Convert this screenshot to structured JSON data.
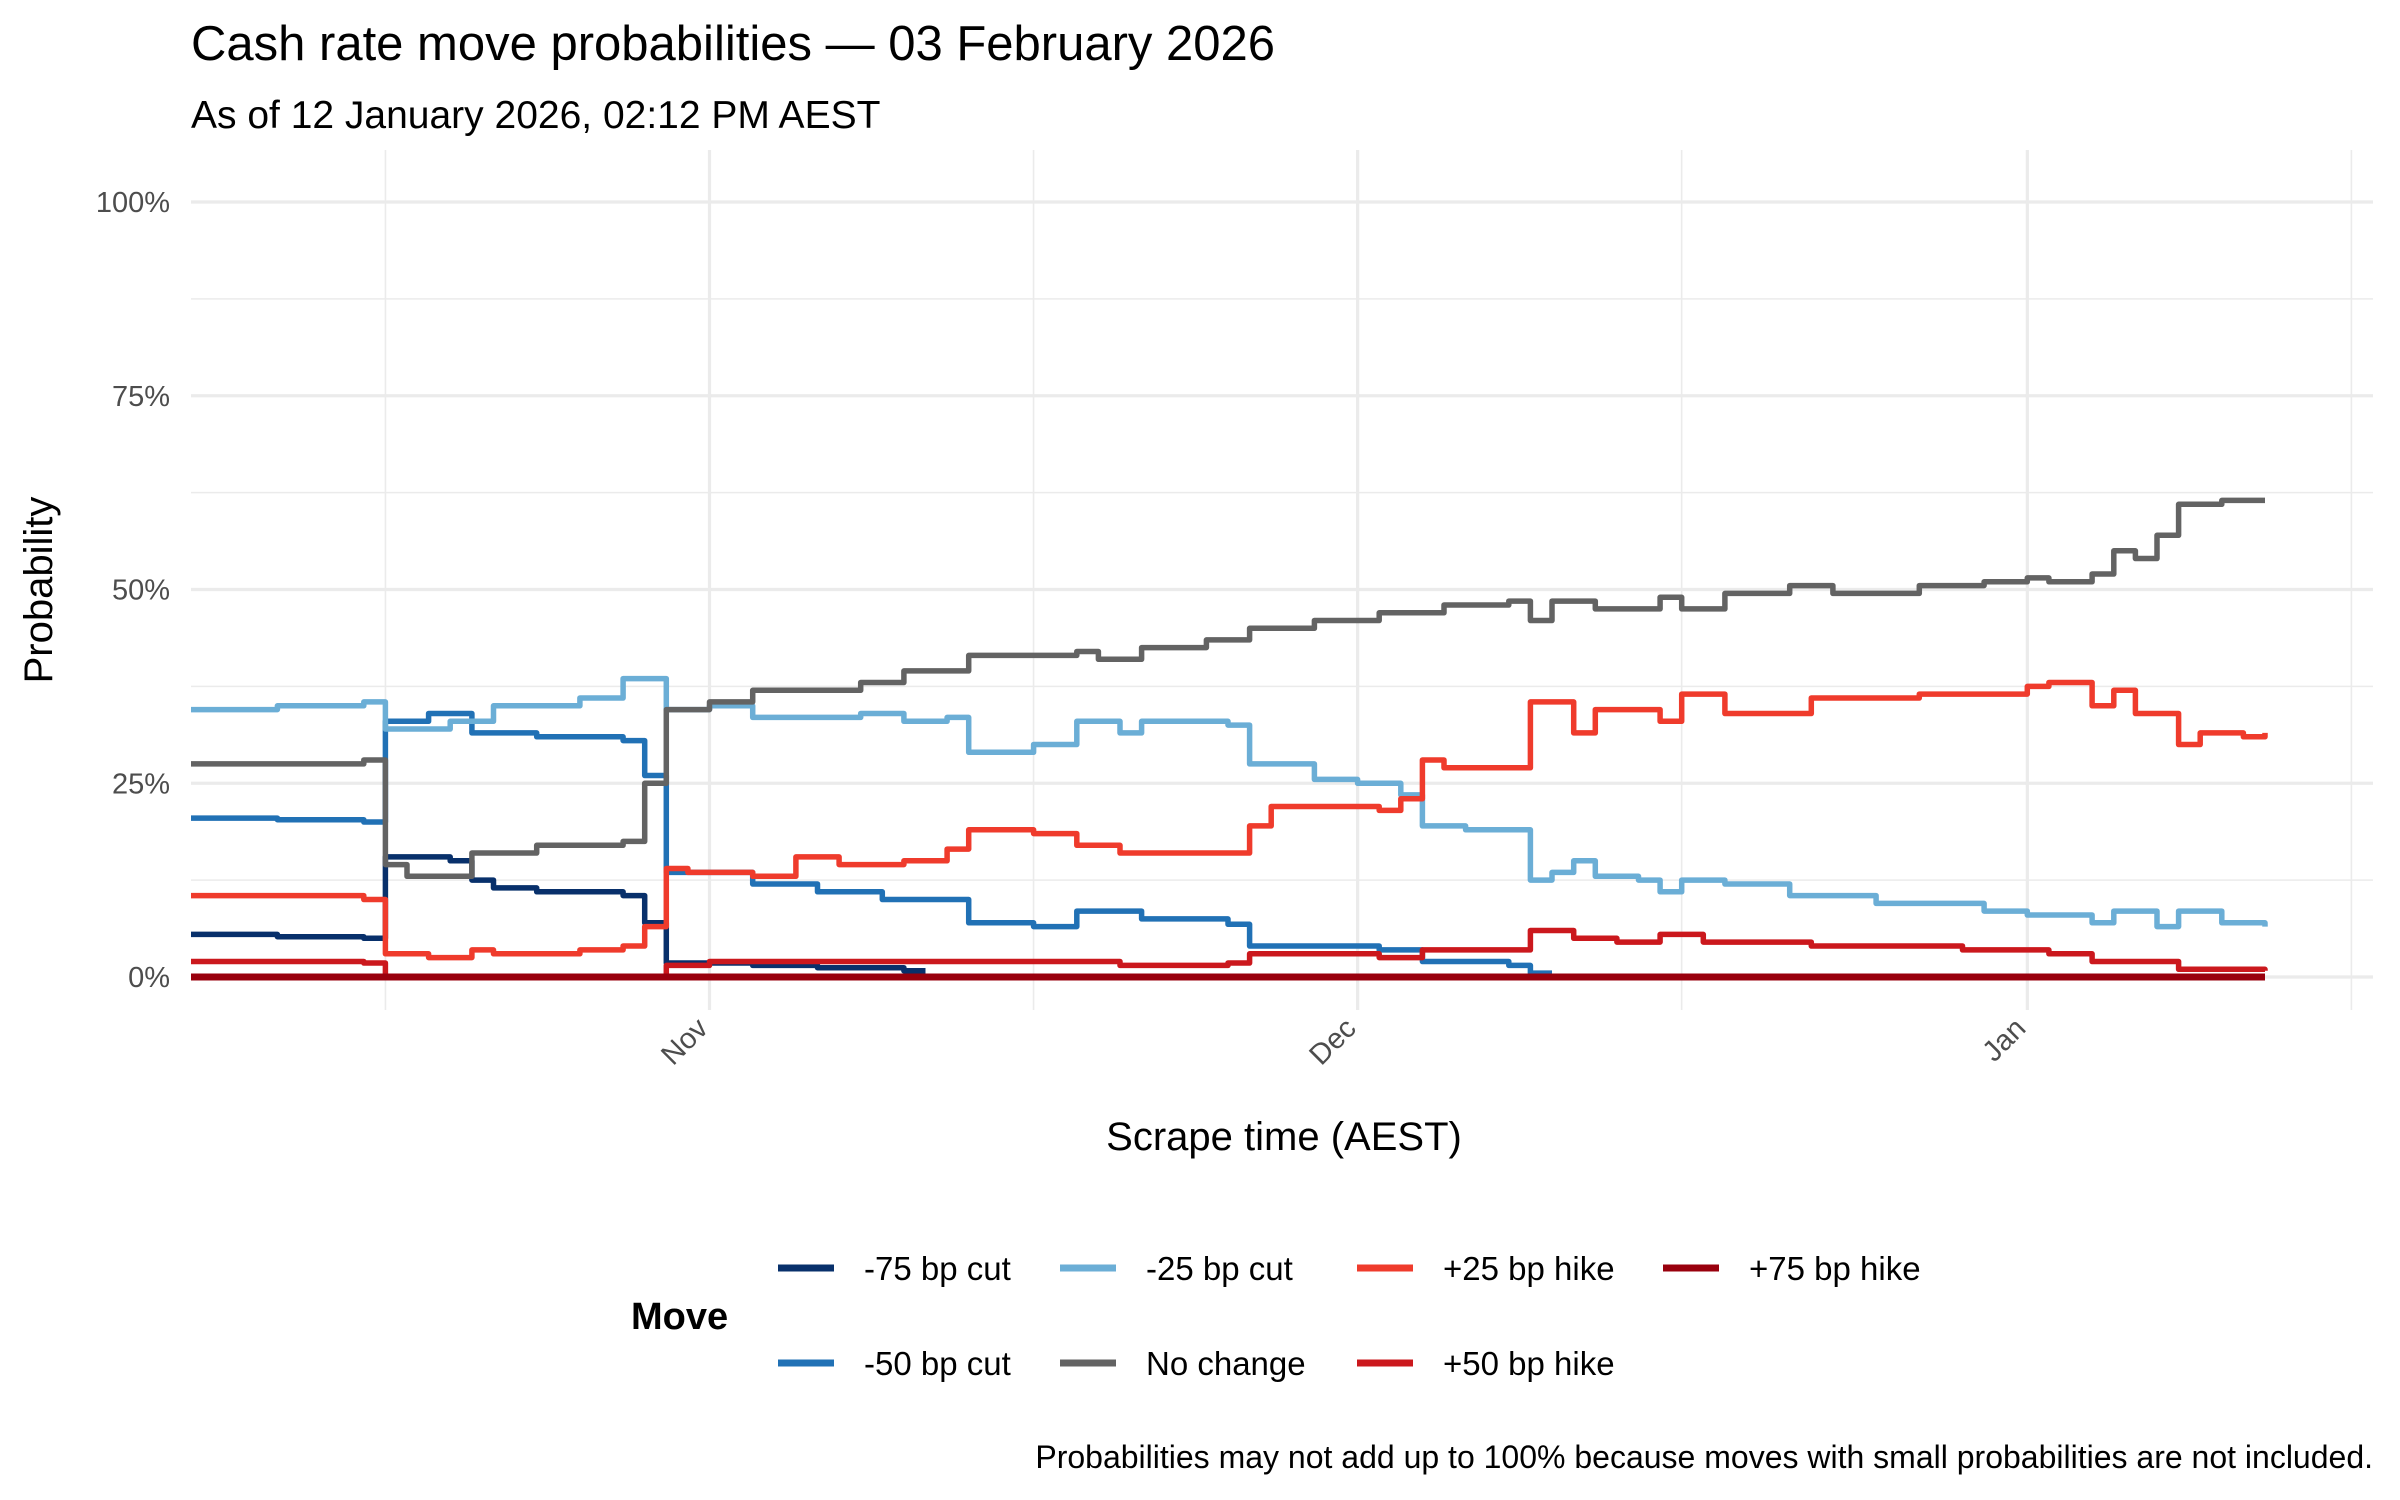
{
  "chart_data": {
    "type": "line",
    "title": "Cash rate move probabilities — 03 February 2026",
    "subtitle": "As of 12 January 2026, 02:12 PM AEST",
    "xlabel": "Scrape time (AEST)",
    "ylabel": "Probability",
    "caption": "Probabilities may not add up to 100% because moves with small probabilities are not included.",
    "xlim": [
      "2025-10-08",
      "2026-01-17"
    ],
    "ylim": [
      0,
      100
    ],
    "x_ticks": [
      {
        "date": "2025-11-01",
        "label": "Nov"
      },
      {
        "date": "2025-12-01",
        "label": "Dec"
      },
      {
        "date": "2026-01-01",
        "label": "Jan"
      }
    ],
    "x_minor_ticks": [
      "2025-10-17",
      "2025-11-16",
      "2025-12-16",
      "2026-01-16"
    ],
    "y_ticks": [
      {
        "value": 0,
        "label": "0%"
      },
      {
        "value": 25,
        "label": "25%"
      },
      {
        "value": 50,
        "label": "50%"
      },
      {
        "value": 75,
        "label": "75%"
      },
      {
        "value": 100,
        "label": "100%"
      }
    ],
    "grid": true,
    "legend": {
      "title": "Move",
      "position": "bottom"
    },
    "series": [
      {
        "name": "-75 bp cut",
        "color": "#08306b",
        "points": [
          [
            "2025-10-08",
            5.5
          ],
          [
            "2025-10-12",
            5.2
          ],
          [
            "2025-10-16",
            5
          ],
          [
            "2025-10-17",
            15.5
          ],
          [
            "2025-10-20",
            15
          ],
          [
            "2025-10-21",
            12.5
          ],
          [
            "2025-10-22",
            11.5
          ],
          [
            "2025-10-24",
            11
          ],
          [
            "2025-10-28",
            10.5
          ],
          [
            "2025-10-29",
            7
          ],
          [
            "2025-10-30",
            1.8
          ],
          [
            "2025-11-03",
            1.5
          ],
          [
            "2025-11-06",
            1.2
          ],
          [
            "2025-11-10",
            0.8
          ],
          [
            "2025-11-11",
            0.8
          ]
        ]
      },
      {
        "name": "-50 bp cut",
        "color": "#2171b5",
        "points": [
          [
            "2025-10-08",
            20.5
          ],
          [
            "2025-10-12",
            20.3
          ],
          [
            "2025-10-16",
            20
          ],
          [
            "2025-10-17",
            33
          ],
          [
            "2025-10-19",
            34
          ],
          [
            "2025-10-21",
            31.5
          ],
          [
            "2025-10-24",
            31
          ],
          [
            "2025-10-28",
            30.5
          ],
          [
            "2025-10-29",
            26
          ],
          [
            "2025-10-30",
            13.5
          ],
          [
            "2025-11-03",
            12
          ],
          [
            "2025-11-06",
            11
          ],
          [
            "2025-11-09",
            10
          ],
          [
            "2025-11-13",
            7
          ],
          [
            "2025-11-16",
            6.5
          ],
          [
            "2025-11-18",
            8.5
          ],
          [
            "2025-11-21",
            7.5
          ],
          [
            "2025-11-25",
            6.8
          ],
          [
            "2025-11-26",
            4
          ],
          [
            "2025-12-02",
            3.5
          ],
          [
            "2025-12-04",
            2
          ],
          [
            "2025-12-08",
            1.5
          ],
          [
            "2025-12-09",
            0.5
          ],
          [
            "2025-12-10",
            0.5
          ]
        ]
      },
      {
        "name": "-25 bp cut",
        "color": "#6baed6",
        "points": [
          [
            "2025-10-08",
            34.5
          ],
          [
            "2025-10-12",
            35
          ],
          [
            "2025-10-16",
            35.5
          ],
          [
            "2025-10-17",
            32
          ],
          [
            "2025-10-20",
            33
          ],
          [
            "2025-10-22",
            35
          ],
          [
            "2025-10-26",
            36
          ],
          [
            "2025-10-28",
            38.5
          ],
          [
            "2025-10-30",
            34.5
          ],
          [
            "2025-11-01",
            35
          ],
          [
            "2025-11-03",
            33.5
          ],
          [
            "2025-11-08",
            34
          ],
          [
            "2025-11-10",
            33
          ],
          [
            "2025-11-12",
            33.5
          ],
          [
            "2025-11-13",
            29
          ],
          [
            "2025-11-16",
            30
          ],
          [
            "2025-11-18",
            33
          ],
          [
            "2025-11-20",
            31.5
          ],
          [
            "2025-11-21",
            33
          ],
          [
            "2025-11-25",
            32.5
          ],
          [
            "2025-11-26",
            27.5
          ],
          [
            "2025-11-29",
            25.5
          ],
          [
            "2025-12-01",
            25
          ],
          [
            "2025-12-03",
            23.5
          ],
          [
            "2025-12-04",
            19.5
          ],
          [
            "2025-12-06",
            19
          ],
          [
            "2025-12-09",
            12.5
          ],
          [
            "2025-12-10",
            13.5
          ],
          [
            "2025-12-11",
            15
          ],
          [
            "2025-12-12",
            13
          ],
          [
            "2025-12-14",
            12.5
          ],
          [
            "2025-12-15",
            11
          ],
          [
            "2025-12-16",
            12.5
          ],
          [
            "2025-12-18",
            12
          ],
          [
            "2025-12-21",
            10.5
          ],
          [
            "2025-12-25",
            9.5
          ],
          [
            "2025-12-30",
            8.5
          ],
          [
            "2026-01-01",
            8
          ],
          [
            "2026-01-04",
            7
          ],
          [
            "2026-01-05",
            8.5
          ],
          [
            "2026-01-07",
            6.5
          ],
          [
            "2026-01-08",
            8.5
          ],
          [
            "2026-01-10",
            7
          ],
          [
            "2026-01-12",
            6.5
          ]
        ]
      },
      {
        "name": "No change",
        "color": "#636363",
        "points": [
          [
            "2025-10-08",
            27.5
          ],
          [
            "2025-10-16",
            28
          ],
          [
            "2025-10-17",
            14.5
          ],
          [
            "2025-10-18",
            13
          ],
          [
            "2025-10-21",
            16
          ],
          [
            "2025-10-24",
            17
          ],
          [
            "2025-10-28",
            17.5
          ],
          [
            "2025-10-29",
            25
          ],
          [
            "2025-10-30",
            34.5
          ],
          [
            "2025-11-01",
            35.5
          ],
          [
            "2025-11-03",
            37
          ],
          [
            "2025-11-08",
            38
          ],
          [
            "2025-11-10",
            39.5
          ],
          [
            "2025-11-13",
            41.5
          ],
          [
            "2025-11-18",
            42
          ],
          [
            "2025-11-19",
            41
          ],
          [
            "2025-11-21",
            42.5
          ],
          [
            "2025-11-24",
            43.5
          ],
          [
            "2025-11-26",
            45
          ],
          [
            "2025-11-29",
            46
          ],
          [
            "2025-12-02",
            47
          ],
          [
            "2025-12-05",
            48
          ],
          [
            "2025-12-08",
            48.5
          ],
          [
            "2025-12-09",
            46
          ],
          [
            "2025-12-10",
            48.5
          ],
          [
            "2025-12-12",
            47.5
          ],
          [
            "2025-12-15",
            49
          ],
          [
            "2025-12-16",
            47.5
          ],
          [
            "2025-12-18",
            49.5
          ],
          [
            "2025-12-21",
            50.5
          ],
          [
            "2025-12-23",
            49.5
          ],
          [
            "2025-12-27",
            50.5
          ],
          [
            "2025-12-30",
            51
          ],
          [
            "2026-01-01",
            51.5
          ],
          [
            "2026-01-02",
            51
          ],
          [
            "2026-01-04",
            52
          ],
          [
            "2026-01-05",
            55
          ],
          [
            "2026-01-06",
            54
          ],
          [
            "2026-01-07",
            57
          ],
          [
            "2026-01-08",
            61
          ],
          [
            "2026-01-10",
            61.5
          ],
          [
            "2026-01-12",
            61.5
          ]
        ]
      },
      {
        "name": "+25 bp hike",
        "color": "#ef3b2c",
        "points": [
          [
            "2025-10-08",
            10.5
          ],
          [
            "2025-10-16",
            10
          ],
          [
            "2025-10-17",
            3
          ],
          [
            "2025-10-19",
            2.5
          ],
          [
            "2025-10-21",
            3.5
          ],
          [
            "2025-10-22",
            3
          ],
          [
            "2025-10-26",
            3.5
          ],
          [
            "2025-10-28",
            4
          ],
          [
            "2025-10-29",
            6.5
          ],
          [
            "2025-10-30",
            14
          ],
          [
            "2025-10-31",
            13.5
          ],
          [
            "2025-11-03",
            13
          ],
          [
            "2025-11-05",
            15.5
          ],
          [
            "2025-11-07",
            14.5
          ],
          [
            "2025-11-10",
            15
          ],
          [
            "2025-11-12",
            16.5
          ],
          [
            "2025-11-13",
            19
          ],
          [
            "2025-11-16",
            18.5
          ],
          [
            "2025-11-18",
            17
          ],
          [
            "2025-11-20",
            16
          ],
          [
            "2025-11-24",
            16
          ],
          [
            "2025-11-26",
            19.5
          ],
          [
            "2025-11-27",
            22
          ],
          [
            "2025-12-02",
            21.5
          ],
          [
            "2025-12-03",
            23
          ],
          [
            "2025-12-04",
            28
          ],
          [
            "2025-12-05",
            27
          ],
          [
            "2025-12-09",
            35.5
          ],
          [
            "2025-12-11",
            31.5
          ],
          [
            "2025-12-12",
            34.5
          ],
          [
            "2025-12-15",
            33
          ],
          [
            "2025-12-16",
            36.5
          ],
          [
            "2025-12-18",
            34
          ],
          [
            "2025-12-22",
            36
          ],
          [
            "2025-12-27",
            36.5
          ],
          [
            "2026-01-01",
            37.5
          ],
          [
            "2026-01-02",
            38
          ],
          [
            "2026-01-04",
            35
          ],
          [
            "2026-01-05",
            37
          ],
          [
            "2026-01-06",
            34
          ],
          [
            "2026-01-08",
            30
          ],
          [
            "2026-01-09",
            31.5
          ],
          [
            "2026-01-11",
            31
          ],
          [
            "2026-01-12",
            31.5
          ]
        ]
      },
      {
        "name": "+50 bp hike",
        "color": "#cb181d",
        "points": [
          [
            "2025-10-08",
            2
          ],
          [
            "2025-10-16",
            1.8
          ],
          [
            "2025-10-17",
            0
          ],
          [
            "2025-10-29",
            0
          ],
          [
            "2025-10-30",
            1.5
          ],
          [
            "2025-11-01",
            2
          ],
          [
            "2025-11-13",
            2
          ],
          [
            "2025-11-20",
            1.5
          ],
          [
            "2025-11-25",
            1.8
          ],
          [
            "2025-11-26",
            3
          ],
          [
            "2025-12-02",
            2.5
          ],
          [
            "2025-12-04",
            3.5
          ],
          [
            "2025-12-09",
            6
          ],
          [
            "2025-12-11",
            5
          ],
          [
            "2025-12-13",
            4.5
          ],
          [
            "2025-12-15",
            5.5
          ],
          [
            "2025-12-17",
            4.5
          ],
          [
            "2025-12-22",
            4
          ],
          [
            "2025-12-29",
            3.5
          ],
          [
            "2026-01-02",
            3
          ],
          [
            "2026-01-04",
            2
          ],
          [
            "2026-01-06",
            2
          ],
          [
            "2026-01-08",
            1
          ],
          [
            "2026-01-12",
            0.8
          ]
        ]
      },
      {
        "name": "+75 bp hike",
        "color": "#99000d",
        "points": [
          [
            "2025-10-08",
            0
          ],
          [
            "2026-01-12",
            0
          ]
        ]
      }
    ]
  }
}
